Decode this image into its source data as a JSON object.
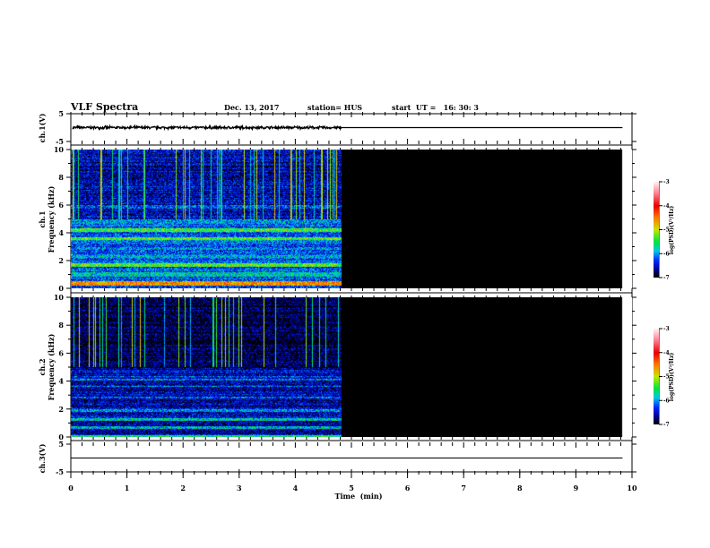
{
  "header": {
    "title": "VLF Spectra",
    "date": "Dec. 13, 2017",
    "station": "station= HUS",
    "start": "start  UT =   16: 30: 3"
  },
  "chart_data": [
    {
      "type": "line",
      "name": "ch1-waveform",
      "ylabel": "ch.1(V)",
      "ylim": [
        -5,
        5
      ],
      "yticks": [
        "5",
        "-5"
      ],
      "xlim": [
        0,
        10
      ],
      "data_end_min": 4.82,
      "flat_end_min": 9.83,
      "noise_amplitude": 0.4,
      "level": 0
    },
    {
      "type": "heatmap",
      "name": "ch1-spectrogram",
      "ylabel": "ch.1\nFrequency (kHz)",
      "ylabel_line1": "ch.1",
      "ylabel_line2": "Frequency (kHz)",
      "ylim": [
        0,
        10
      ],
      "yticks": [
        "0",
        "2",
        "4",
        "6",
        "8",
        "10"
      ],
      "xlim": [
        0,
        10
      ],
      "data_end_min": 4.82,
      "black_end_min": 9.83,
      "bands_khz": [
        [
          0.2,
          0.55,
          -4.6
        ],
        [
          0.9,
          1.2,
          -5.8
        ],
        [
          1.55,
          1.85,
          -5.3
        ],
        [
          2.2,
          2.4,
          -5.9
        ],
        [
          3.5,
          3.7,
          -5.3
        ],
        [
          4.1,
          4.35,
          -5.4
        ],
        [
          4.7,
          5.0,
          -6.0
        ],
        [
          5.8,
          6.0,
          -6.2
        ]
      ],
      "colorbar": {
        "label": "log(PSD)(V²/Hz)",
        "range": [
          -7,
          -3
        ],
        "ticks": [
          "-3",
          "-4",
          "-5",
          "-6",
          "-7"
        ]
      }
    },
    {
      "type": "heatmap",
      "name": "ch2-spectrogram",
      "ylabel_line1": "ch.2",
      "ylabel_line2": "Frequency (kHz)",
      "ylim": [
        0,
        10
      ],
      "yticks": [
        "0",
        "2",
        "4",
        "6",
        "8",
        "10"
      ],
      "xlim": [
        0,
        10
      ],
      "data_end_min": 4.82,
      "black_end_min": 9.83,
      "bands_khz": [
        [
          0.0,
          0.15,
          -5.6
        ],
        [
          0.6,
          0.8,
          -5.9
        ],
        [
          1.2,
          1.4,
          -5.8
        ],
        [
          1.8,
          2.0,
          -6.0
        ],
        [
          2.8,
          2.9,
          -6.2
        ],
        [
          3.6,
          3.7,
          -6.1
        ],
        [
          4.1,
          4.2,
          -6.1
        ],
        [
          4.3,
          4.4,
          -6.2
        ]
      ],
      "colorbar": {
        "label": "log(PSD)(V²/Hz)",
        "range": [
          -7,
          -3
        ],
        "ticks": [
          "-3",
          "-4",
          "-5",
          "-6",
          "-7"
        ]
      }
    },
    {
      "type": "line",
      "name": "ch3-waveform",
      "ylabel": "ch.3(V)",
      "ylim": [
        -5,
        5
      ],
      "yticks": [
        "5",
        "-5"
      ],
      "xlim": [
        0,
        10
      ],
      "level": 0,
      "flat_end_min": 9.83
    }
  ],
  "xaxis": {
    "label": "Time  (min)",
    "ticks": [
      "0",
      "1",
      "2",
      "3",
      "4",
      "5",
      "6",
      "7",
      "8",
      "9",
      "10"
    ]
  }
}
